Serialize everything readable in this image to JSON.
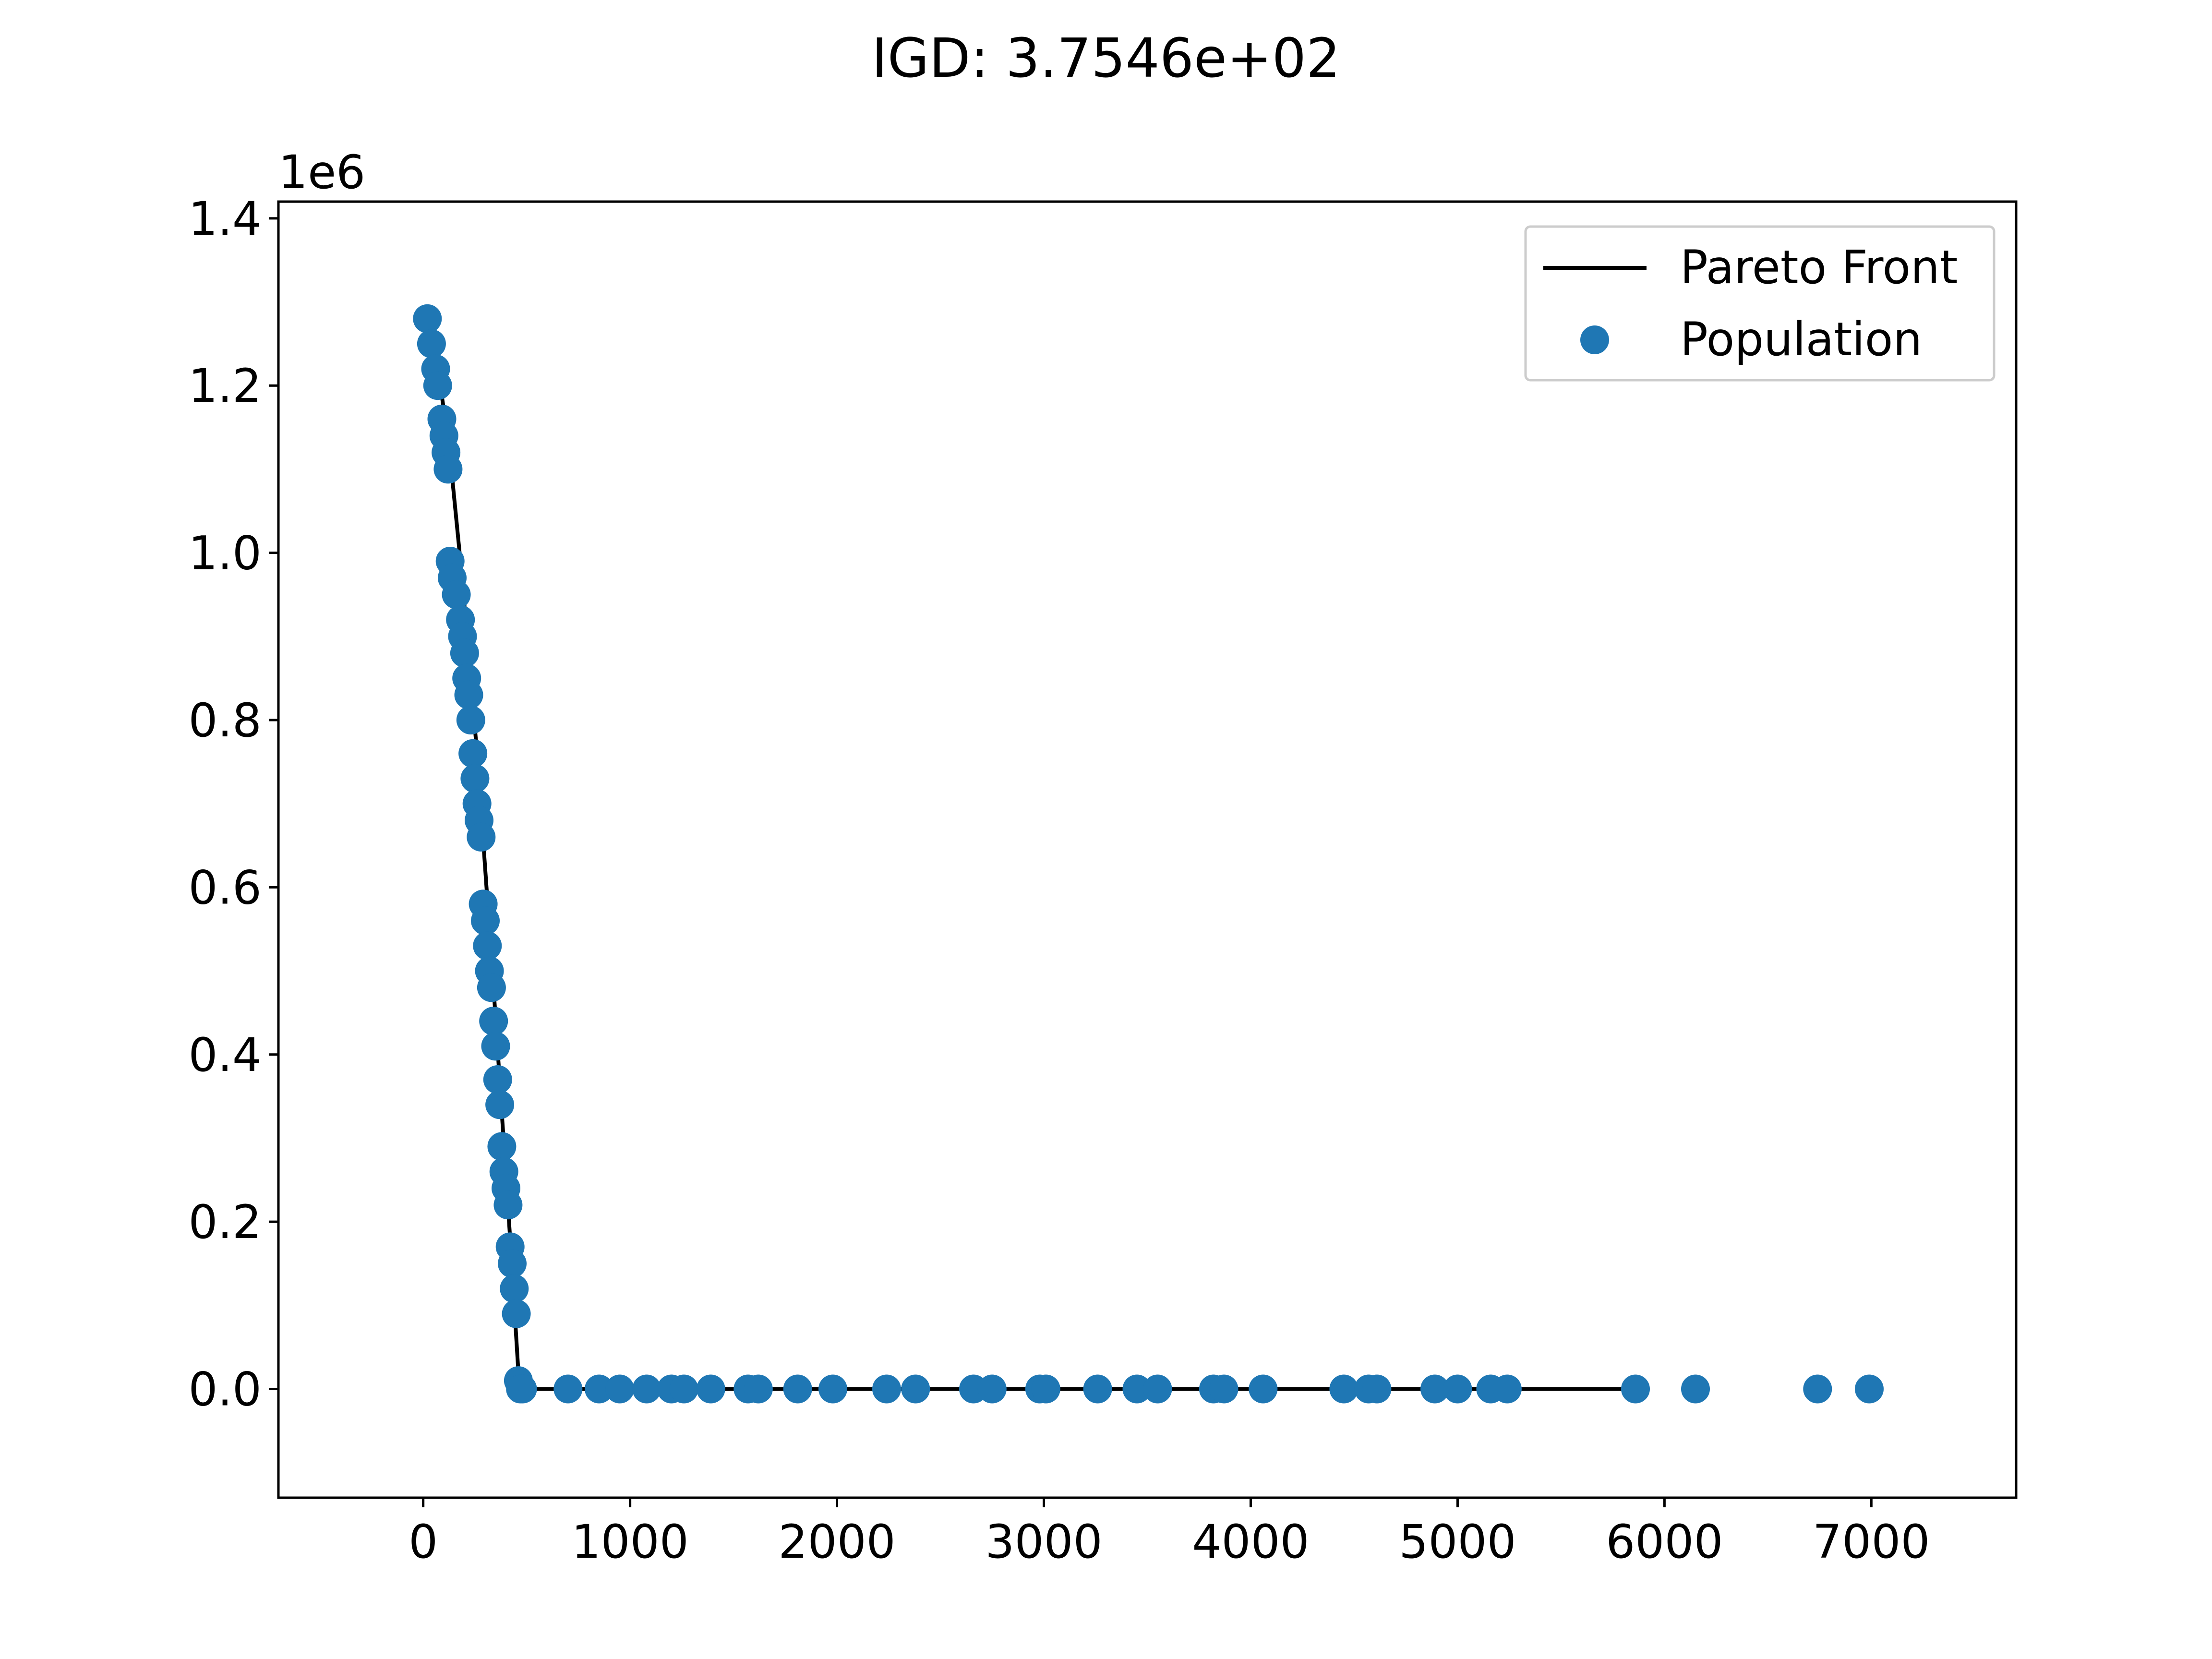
{
  "chart_data": {
    "type": "scatter",
    "title": "IGD: 3.7546e+02",
    "xlabel": "",
    "ylabel": "",
    "xlim": [
      -700,
      7700
    ],
    "ylim": [
      -130000,
      1420000
    ],
    "xticks": [
      0,
      1000,
      2000,
      3000,
      4000,
      5000,
      6000,
      7000
    ],
    "xtick_labels": [
      "0",
      "1000",
      "2000",
      "3000",
      "4000",
      "5000",
      "6000",
      "7000"
    ],
    "yticks": [
      0,
      200000,
      400000,
      600000,
      800000,
      1000000,
      1200000,
      1400000
    ],
    "ytick_labels": [
      "0.0",
      "0.2",
      "0.4",
      "0.6",
      "0.8",
      "1.0",
      "1.2",
      "1.4"
    ],
    "y_offset_label": "1e6",
    "grid": false,
    "legend_position": "upper-right",
    "series": [
      {
        "name": "Pareto Front",
        "kind": "line",
        "color": "#000000",
        "x": [
          20,
          60,
          100,
          140,
          180,
          220,
          260,
          300,
          340,
          380,
          420,
          460,
          480,
          5850
        ],
        "y": [
          1290000,
          1240000,
          1170000,
          1090000,
          990000,
          880000,
          760000,
          620000,
          480000,
          330000,
          180000,
          20000,
          0,
          0
        ]
      },
      {
        "name": "Population",
        "kind": "scatter",
        "color": "#1f77b4",
        "x": [
          20,
          40,
          60,
          70,
          90,
          100,
          110,
          120,
          130,
          140,
          160,
          180,
          190,
          200,
          210,
          220,
          230,
          240,
          250,
          260,
          270,
          280,
          290,
          300,
          310,
          320,
          330,
          340,
          350,
          360,
          370,
          380,
          390,
          400,
          410,
          420,
          430,
          440,
          450,
          460,
          470,
          480,
          700,
          850,
          950,
          1080,
          1200,
          1260,
          1390,
          1570,
          1620,
          1810,
          1980,
          2240,
          2380,
          2660,
          2750,
          2980,
          3010,
          3260,
          3450,
          3550,
          3820,
          3870,
          4060,
          4450,
          4570,
          4610,
          4890,
          5000,
          5160,
          5240,
          5860,
          6150,
          6740,
          6990
        ],
        "y": [
          1280000,
          1250000,
          1220000,
          1200000,
          1160000,
          1140000,
          1120000,
          1100000,
          990000,
          970000,
          950000,
          920000,
          900000,
          880000,
          850000,
          830000,
          800000,
          760000,
          730000,
          700000,
          680000,
          660000,
          580000,
          560000,
          530000,
          500000,
          480000,
          440000,
          410000,
          370000,
          340000,
          290000,
          260000,
          240000,
          220000,
          170000,
          150000,
          120000,
          90000,
          10000,
          0,
          0,
          0,
          0,
          0,
          0,
          0,
          0,
          0,
          0,
          0,
          0,
          0,
          0,
          0,
          0,
          0,
          0,
          0,
          0,
          0,
          0,
          0,
          0,
          0,
          0,
          0,
          0,
          0,
          0,
          0,
          0,
          0,
          0,
          0,
          0
        ]
      }
    ]
  }
}
